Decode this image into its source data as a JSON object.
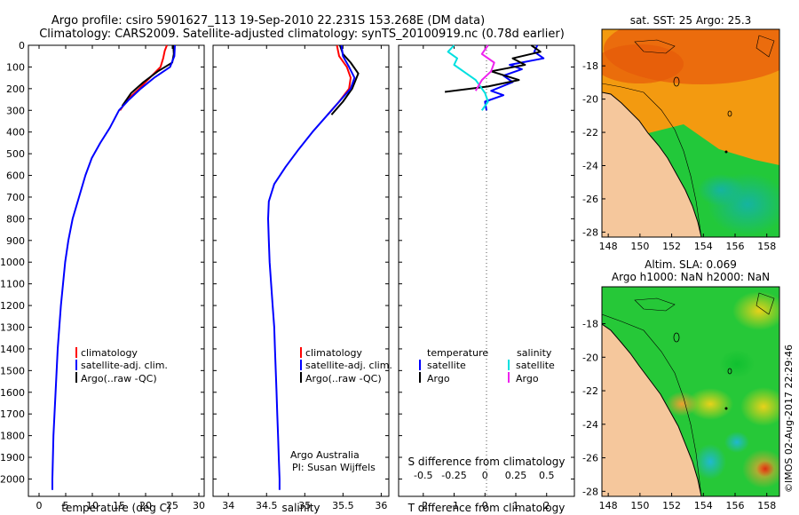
{
  "header": {
    "line1": "Argo profile: csiro 5901627_113 19-Sep-2010 22.231S 153.268E (DM data)",
    "line2": "Climatology: CARS2009. Satellite-adjusted climatology: synTS_20100919.nc (0.78d earlier)"
  },
  "chart_data": [
    {
      "type": "line",
      "id": "temperature",
      "xlabel": "temperature (deg C)",
      "ylabel": "",
      "xlim": [
        -2,
        31
      ],
      "ylim": [
        0,
        2080
      ],
      "x_ticks": [
        0,
        5,
        10,
        15,
        20,
        25,
        30
      ],
      "y_ticks": [
        0,
        100,
        200,
        300,
        400,
        500,
        600,
        700,
        800,
        900,
        1000,
        1100,
        1200,
        1300,
        1400,
        1500,
        1600,
        1700,
        1800,
        1900,
        2000
      ],
      "legend": [
        {
          "label": "climatology",
          "color": "#ff0000"
        },
        {
          "label": "satellite-adj. clim.",
          "color": "#0000ff"
        },
        {
          "label": "Argo(..raw -QC)",
          "color": "#000000"
        }
      ],
      "series": [
        {
          "name": "climatology",
          "color": "#ff0000",
          "points": [
            [
              24.0,
              0
            ],
            [
              23.6,
              25
            ],
            [
              23.3,
              60
            ],
            [
              22.8,
              100
            ],
            [
              20.8,
              150
            ],
            [
              18.8,
              200
            ],
            [
              16.6,
              250
            ],
            [
              15.2,
              300
            ]
          ]
        },
        {
          "name": "Argo",
          "color": "#000000",
          "points": [
            [
              25.2,
              0
            ],
            [
              25.3,
              40
            ],
            [
              25.0,
              80
            ],
            [
              22.3,
              120
            ],
            [
              19.6,
              170
            ],
            [
              17.3,
              220
            ],
            [
              15.6,
              280
            ]
          ]
        },
        {
          "name": "satellite-adj. clim.",
          "color": "#0000ff",
          "points": [
            [
              25.5,
              0
            ],
            [
              25.4,
              50
            ],
            [
              24.6,
              100
            ],
            [
              21.6,
              150
            ],
            [
              19.1,
              200
            ],
            [
              16.9,
              250
            ],
            [
              15.0,
              300
            ],
            [
              13.3,
              380
            ],
            [
              11.5,
              450
            ],
            [
              9.9,
              520
            ],
            [
              8.7,
              600
            ],
            [
              7.5,
              700
            ],
            [
              6.3,
              800
            ],
            [
              5.5,
              900
            ],
            [
              4.9,
              1000
            ],
            [
              4.5,
              1100
            ],
            [
              4.1,
              1200
            ],
            [
              3.8,
              1300
            ],
            [
              3.5,
              1400
            ],
            [
              3.3,
              1500
            ],
            [
              3.1,
              1600
            ],
            [
              2.9,
              1700
            ],
            [
              2.7,
              1800
            ],
            [
              2.6,
              1900
            ],
            [
              2.5,
              2000
            ],
            [
              2.5,
              2050
            ]
          ]
        }
      ]
    },
    {
      "type": "line",
      "id": "salinity",
      "xlabel": "salinity",
      "xlim": [
        33.8,
        36.1
      ],
      "ylim": [
        0,
        2080
      ],
      "x_ticks": [
        34,
        34.5,
        35,
        35.5,
        36
      ],
      "legend": [
        {
          "label": "climatology",
          "color": "#ff0000"
        },
        {
          "label": "satellite-adj. clim.",
          "color": "#0000ff"
        },
        {
          "label": "Argo(..raw -QC)",
          "color": "#000000"
        }
      ],
      "annotations": [
        "Argo Australia",
        "PI: Susan Wijffels"
      ],
      "series": [
        {
          "name": "climatology",
          "color": "#ff0000",
          "points": [
            [
              35.42,
              0
            ],
            [
              35.45,
              50
            ],
            [
              35.55,
              100
            ],
            [
              35.6,
              150
            ],
            [
              35.58,
              200
            ],
            [
              35.45,
              260
            ],
            [
              35.3,
              320
            ]
          ]
        },
        {
          "name": "Argo",
          "color": "#000000",
          "points": [
            [
              35.46,
              0
            ],
            [
              35.5,
              40
            ],
            [
              35.6,
              80
            ],
            [
              35.7,
              130
            ],
            [
              35.62,
              200
            ],
            [
              35.5,
              260
            ],
            [
              35.35,
              320
            ]
          ]
        },
        {
          "name": "satellite-adj. clim.",
          "color": "#0000ff",
          "points": [
            [
              35.48,
              0
            ],
            [
              35.5,
              50
            ],
            [
              35.58,
              100
            ],
            [
              35.65,
              150
            ],
            [
              35.6,
              200
            ],
            [
              35.45,
              260
            ],
            [
              35.3,
              320
            ],
            [
              35.1,
              400
            ],
            [
              34.92,
              480
            ],
            [
              34.75,
              560
            ],
            [
              34.6,
              640
            ],
            [
              34.53,
              720
            ],
            [
              34.52,
              800
            ],
            [
              34.53,
              900
            ],
            [
              34.54,
              1000
            ],
            [
              34.56,
              1100
            ],
            [
              34.58,
              1200
            ],
            [
              34.6,
              1300
            ],
            [
              34.61,
              1400
            ],
            [
              34.62,
              1500
            ],
            [
              34.63,
              1600
            ],
            [
              34.64,
              1700
            ],
            [
              34.65,
              1800
            ],
            [
              34.66,
              1900
            ],
            [
              34.67,
              2000
            ],
            [
              34.67,
              2050
            ]
          ]
        }
      ]
    },
    {
      "type": "line",
      "id": "difference",
      "xlabel": "T difference from climatology",
      "xlabel_top": "S difference from climatology",
      "xlim": [
        -2.8,
        2.9
      ],
      "ylim": [
        0,
        2080
      ],
      "x_ticks": [
        -2,
        -1,
        0,
        1,
        2
      ],
      "x_ticks_top": [
        {
          "v": -2,
          "label": "-0.5"
        },
        {
          "v": -1,
          "label": "-0.25"
        },
        {
          "v": 0,
          "label": "0"
        },
        {
          "v": 1,
          "label": "0.25"
        },
        {
          "v": 2,
          "label": "0.5"
        }
      ],
      "legend_groups": [
        {
          "title": "temperature",
          "items": [
            {
              "label": "satellite",
              "color": "#0000ff"
            },
            {
              "label": "Argo",
              "color": "#000000"
            }
          ]
        },
        {
          "title": "salinity",
          "items": [
            {
              "label": "satellite",
              "color": "#00e0e0"
            },
            {
              "label": "Argo",
              "color": "#ee22ee"
            }
          ]
        }
      ],
      "series": [
        {
          "name": "T satellite",
          "color": "#0000ff",
          "points": [
            [
              1.7,
              0
            ],
            [
              1.6,
              30
            ],
            [
              1.9,
              60
            ],
            [
              0.8,
              90
            ],
            [
              1.2,
              110
            ],
            [
              0.6,
              140
            ],
            [
              0.9,
              170
            ],
            [
              0.2,
              210
            ],
            [
              0.6,
              230
            ],
            [
              0.0,
              260
            ],
            [
              0.05,
              300
            ]
          ]
        },
        {
          "name": "T Argo",
          "color": "#000000",
          "points": [
            [
              1.5,
              0
            ],
            [
              1.8,
              30
            ],
            [
              0.9,
              60
            ],
            [
              1.3,
              90
            ],
            [
              0.2,
              120
            ],
            [
              1.1,
              160
            ],
            [
              0.1,
              190
            ],
            [
              -1.3,
              215
            ]
          ]
        },
        {
          "name": "S satellite",
          "color": "#00e0e0",
          "points": [
            [
              -1.0,
              0
            ],
            [
              -1.2,
              30
            ],
            [
              -0.9,
              60
            ],
            [
              -1.0,
              90
            ],
            [
              -0.7,
              120
            ],
            [
              -0.3,
              160
            ],
            [
              0.0,
              220
            ],
            [
              0.1,
              260
            ],
            [
              -0.1,
              300
            ]
          ]
        },
        {
          "name": "S Argo",
          "color": "#ee22ee",
          "points": [
            [
              0.1,
              0
            ],
            [
              -0.1,
              40
            ],
            [
              0.3,
              80
            ],
            [
              0.2,
              120
            ],
            [
              -0.1,
              160
            ],
            [
              -0.3,
              210
            ]
          ]
        }
      ]
    },
    {
      "type": "heatmap",
      "id": "sst-map",
      "title": "sat. SST: 25 Argo: 25.3",
      "xlim": [
        147.6,
        158.8
      ],
      "ylim": [
        -28.3,
        -15.8
      ],
      "x_ticks": [
        148,
        150,
        152,
        154,
        156,
        158
      ],
      "y_ticks": [
        -18,
        -20,
        -22,
        -24,
        -26,
        -28
      ]
    },
    {
      "type": "heatmap",
      "id": "sla-map",
      "title": "Altim. SLA: 0.069",
      "subtitle": "Argo h1000: NaN h2000: NaN",
      "xlim": [
        147.6,
        158.8
      ],
      "ylim": [
        -28.3,
        -15.8
      ],
      "x_ticks": [
        148,
        150,
        152,
        154,
        156,
        158
      ],
      "y_ticks": [
        -18,
        -20,
        -22,
        -24,
        -26,
        -28
      ]
    }
  ],
  "credit": "©IMOS 02-Aug-2017 22:29:46",
  "colors": {
    "land": "#f5c79c",
    "warm_sea": "#f39a10",
    "hot_sea": "#e85a0a",
    "green_sea": "#22c83a",
    "teal_sea": "#18b78a"
  }
}
